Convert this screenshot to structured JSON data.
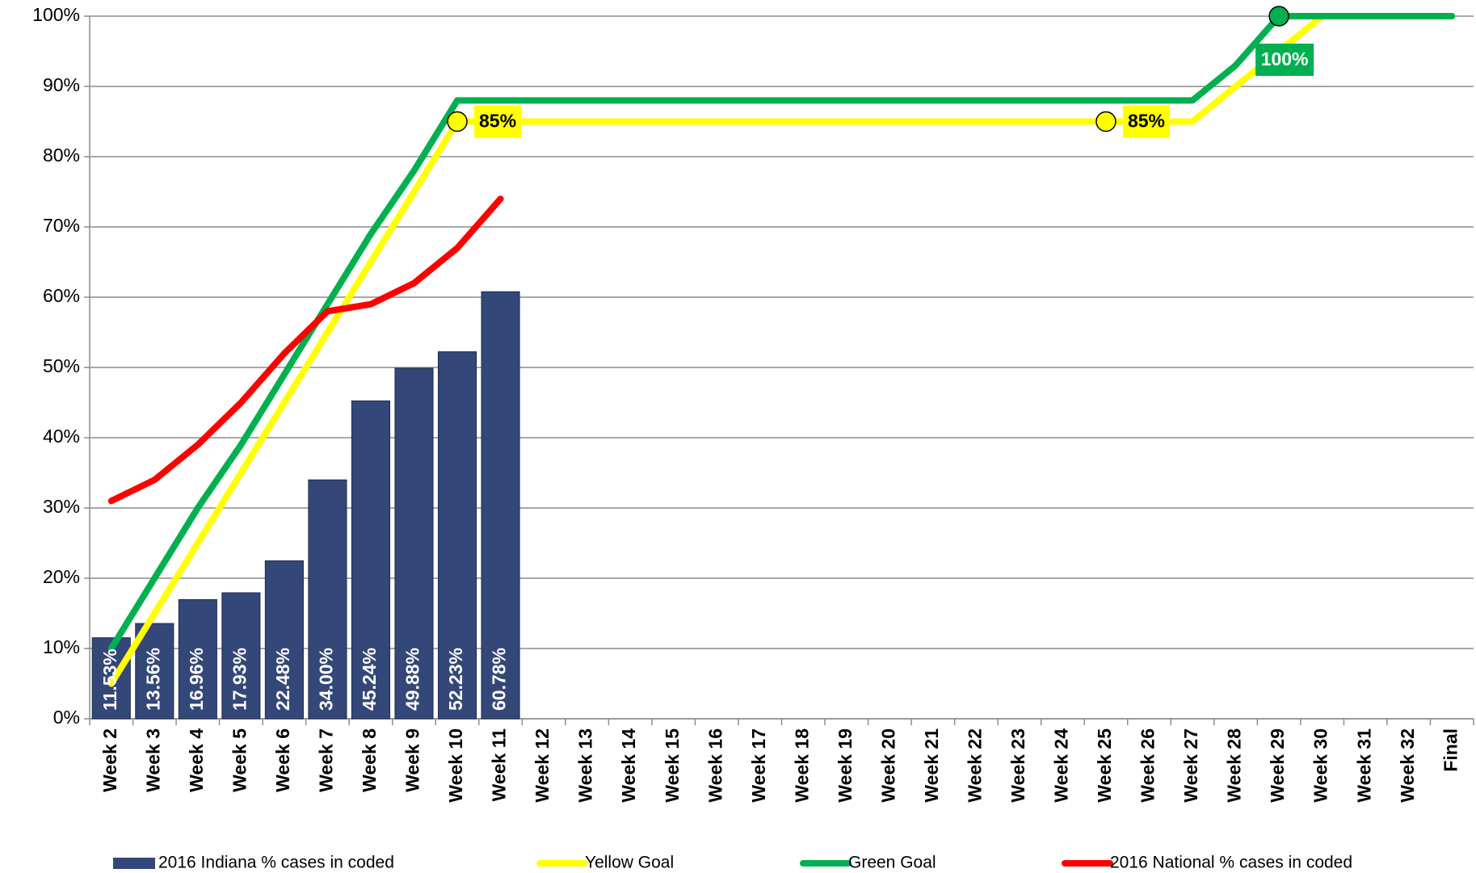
{
  "chart_data": {
    "type": "bar",
    "categories": [
      "Week 2",
      "Week 3",
      "Week 4",
      "Week 5",
      "Week 6",
      "Week 7",
      "Week 8",
      "Week 9",
      "Week 10",
      "Week 11",
      "Week 12",
      "Week 13",
      "Week 14",
      "Week 15",
      "Week 16",
      "Week 17",
      "Week 18",
      "Week 19",
      "Week 20",
      "Week 21",
      "Week 22",
      "Week 23",
      "Week 24",
      "Week 25",
      "Week 26",
      "Week 27",
      "Week 28",
      "Week 29",
      "Week 30",
      "Week 31",
      "Week 32",
      "Final"
    ],
    "series": [
      {
        "name": "2016 Indiana % cases in coded",
        "type": "bar",
        "color": "#344779",
        "values": [
          11.53,
          13.56,
          16.96,
          17.93,
          22.48,
          34.0,
          45.24,
          49.88,
          52.23,
          60.78,
          null,
          null,
          null,
          null,
          null,
          null,
          null,
          null,
          null,
          null,
          null,
          null,
          null,
          null,
          null,
          null,
          null,
          null,
          null,
          null,
          null,
          null
        ],
        "value_labels": [
          "11.53%",
          "13.56%",
          "16.96%",
          "17.93%",
          "22.48%",
          "34.00%",
          "45.24%",
          "49.88%",
          "52.23%",
          "60.78%",
          null,
          null,
          null,
          null,
          null,
          null,
          null,
          null,
          null,
          null,
          null,
          null,
          null,
          null,
          null,
          null,
          null,
          null,
          null,
          null,
          null,
          null
        ]
      },
      {
        "name": "Yellow Goal",
        "type": "line",
        "color": "#ffff00",
        "values": [
          5,
          15,
          25,
          35,
          45,
          55,
          65,
          75,
          85,
          85,
          85,
          85,
          85,
          85,
          85,
          85,
          85,
          85,
          85,
          85,
          85,
          85,
          85,
          85,
          85,
          85,
          90,
          95,
          100,
          100,
          100,
          100
        ]
      },
      {
        "name": "Green Goal",
        "type": "line",
        "color": "#00b050",
        "values": [
          10,
          20,
          30,
          39,
          49,
          59,
          69,
          78,
          88,
          88,
          88,
          88,
          88,
          88,
          88,
          88,
          88,
          88,
          88,
          88,
          88,
          88,
          88,
          88,
          88,
          88,
          93,
          100,
          100,
          100,
          100,
          100
        ]
      },
      {
        "name": "2016 National % cases in coded",
        "type": "line",
        "color": "#ff0000",
        "values": [
          31,
          34,
          39,
          45,
          52,
          58,
          59,
          62,
          67,
          74,
          null,
          null,
          null,
          null,
          null,
          null,
          null,
          null,
          null,
          null,
          null,
          null,
          null,
          null,
          null,
          null,
          null,
          null,
          null,
          null,
          null,
          null
        ]
      }
    ],
    "annotations": [
      {
        "x": "Week 10",
        "value": 85,
        "label": "85%",
        "series": "Yellow Goal"
      },
      {
        "x": "Week 25",
        "value": 85,
        "label": "85%",
        "series": "Yellow Goal"
      },
      {
        "x": "Week 29",
        "value": 100,
        "label": "100%",
        "series": "Green Goal"
      }
    ],
    "ylim": [
      0,
      100
    ],
    "yticks": [
      {
        "value": 0,
        "label": "0%"
      },
      {
        "value": 10,
        "label": "10%"
      },
      {
        "value": 20,
        "label": "20%"
      },
      {
        "value": 30,
        "label": "30%"
      },
      {
        "value": 40,
        "label": "40%"
      },
      {
        "value": 50,
        "label": "50%"
      },
      {
        "value": 60,
        "label": "60%"
      },
      {
        "value": 70,
        "label": "70%"
      },
      {
        "value": 80,
        "label": "80%"
      },
      {
        "value": 90,
        "label": "90%"
      },
      {
        "value": 100,
        "label": "100%"
      }
    ],
    "grid": true,
    "legend": "bottom"
  }
}
